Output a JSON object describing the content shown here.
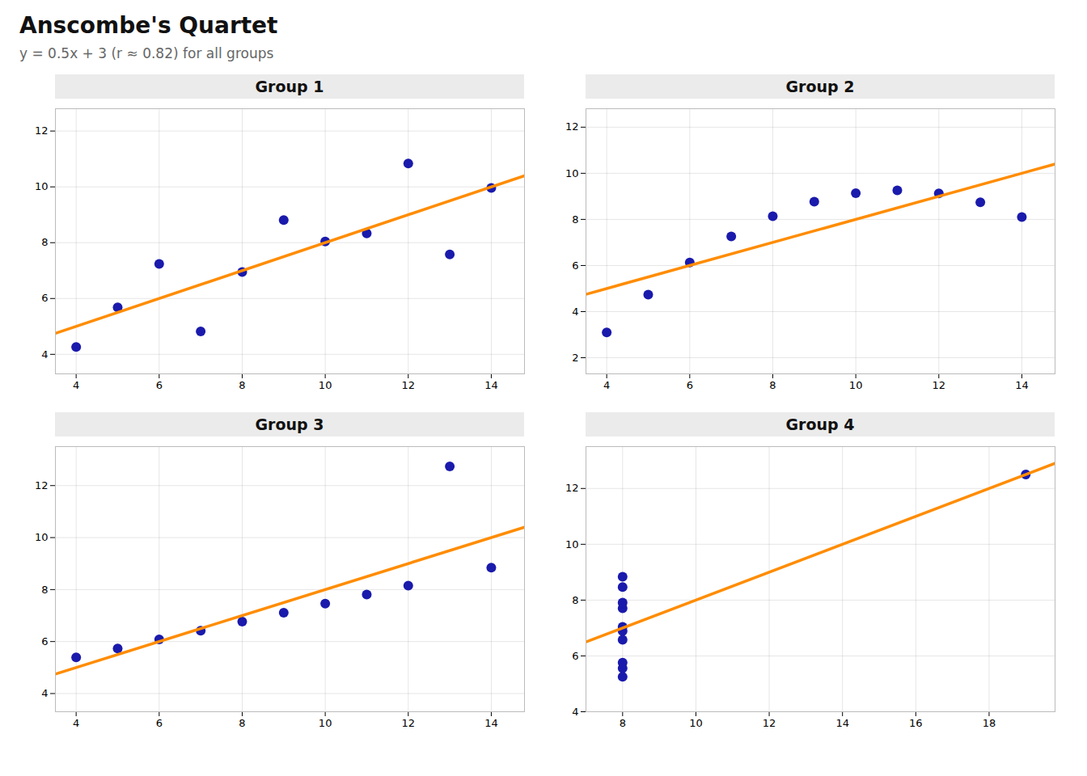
{
  "title": "Anscombe's Quartet",
  "subtitle": "y = 0.5x + 3  (r ≈ 0.82)  for all groups",
  "chart_data": [
    {
      "type": "scatter",
      "title": "Group 1",
      "grid": true,
      "xlim": [
        3.5,
        14.8
      ],
      "ylim": [
        3.3,
        12.8
      ],
      "xticks": [
        4,
        6,
        8,
        10,
        12,
        14
      ],
      "yticks": [
        4,
        6,
        8,
        10,
        12
      ],
      "series": [
        {
          "type": "scatter",
          "color": "#1a1aac",
          "marker": "circle",
          "x": [
            10,
            8,
            13,
            9,
            11,
            14,
            6,
            4,
            12,
            7,
            5
          ],
          "values": [
            8.04,
            6.95,
            7.58,
            8.81,
            8.33,
            9.96,
            7.24,
            4.26,
            10.84,
            4.82,
            5.68
          ]
        },
        {
          "type": "line",
          "color": "#FF8C00",
          "line_style": "solid",
          "x": [
            3.5,
            14.8
          ],
          "values": [
            4.75,
            10.4
          ]
        }
      ]
    },
    {
      "type": "scatter",
      "title": "Group 2",
      "grid": true,
      "xlim": [
        3.5,
        14.8
      ],
      "ylim": [
        1.3,
        12.8
      ],
      "xticks": [
        4,
        6,
        8,
        10,
        12,
        14
      ],
      "yticks": [
        2,
        4,
        6,
        8,
        10,
        12
      ],
      "series": [
        {
          "type": "scatter",
          "color": "#1a1aac",
          "marker": "circle",
          "x": [
            10,
            8,
            13,
            9,
            11,
            14,
            6,
            4,
            12,
            7,
            5
          ],
          "values": [
            9.14,
            8.14,
            8.74,
            8.77,
            9.26,
            8.1,
            6.13,
            3.1,
            9.13,
            7.26,
            4.74
          ]
        },
        {
          "type": "line",
          "color": "#FF8C00",
          "line_style": "solid",
          "x": [
            3.5,
            14.8
          ],
          "values": [
            4.75,
            10.4
          ]
        }
      ]
    },
    {
      "type": "scatter",
      "title": "Group 3",
      "grid": true,
      "xlim": [
        3.5,
        14.8
      ],
      "ylim": [
        3.3,
        13.5
      ],
      "xticks": [
        4,
        6,
        8,
        10,
        12,
        14
      ],
      "yticks": [
        4,
        6,
        8,
        10,
        12
      ],
      "series": [
        {
          "type": "scatter",
          "color": "#1a1aac",
          "marker": "circle",
          "x": [
            10,
            8,
            13,
            9,
            11,
            14,
            6,
            4,
            12,
            7,
            5
          ],
          "values": [
            7.46,
            6.77,
            12.74,
            7.11,
            7.81,
            8.84,
            6.08,
            5.39,
            8.15,
            6.42,
            5.73
          ]
        },
        {
          "type": "line",
          "color": "#FF8C00",
          "line_style": "solid",
          "x": [
            3.5,
            14.8
          ],
          "values": [
            4.75,
            10.4
          ]
        }
      ]
    },
    {
      "type": "scatter",
      "title": "Group 4",
      "grid": true,
      "xlim": [
        7.0,
        19.8
      ],
      "ylim": [
        4.0,
        13.5
      ],
      "xticks": [
        8,
        10,
        12,
        14,
        16,
        18
      ],
      "yticks": [
        4,
        6,
        8,
        10,
        12
      ],
      "series": [
        {
          "type": "scatter",
          "color": "#1a1aac",
          "marker": "circle",
          "x": [
            8,
            8,
            8,
            8,
            8,
            8,
            8,
            19,
            8,
            8,
            8
          ],
          "values": [
            6.58,
            5.76,
            7.71,
            8.84,
            8.47,
            7.04,
            5.25,
            12.5,
            5.56,
            7.91,
            6.89
          ]
        },
        {
          "type": "line",
          "color": "#FF8C00",
          "line_style": "solid",
          "x": [
            7.0,
            19.8
          ],
          "values": [
            6.5,
            12.9
          ]
        }
      ]
    }
  ]
}
